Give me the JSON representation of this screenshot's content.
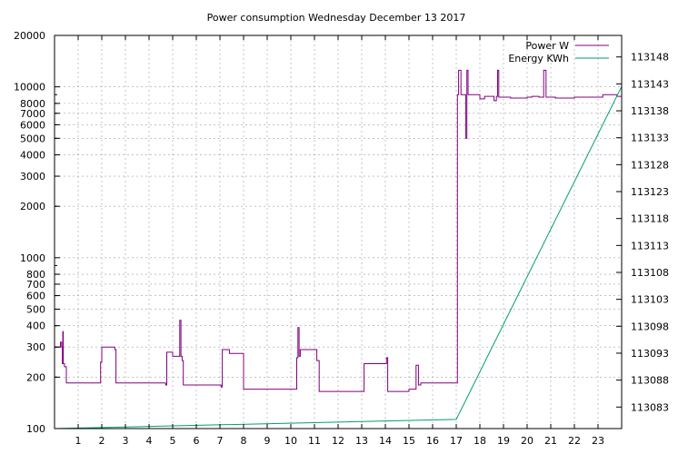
{
  "chart_data": {
    "type": "line",
    "title": "Power consumption Wednesday December 13 2017",
    "xlabel": "",
    "ylabel": "",
    "x_ticks": [
      1,
      2,
      3,
      4,
      5,
      6,
      7,
      8,
      9,
      10,
      11,
      12,
      13,
      14,
      15,
      16,
      17,
      18,
      19,
      20,
      21,
      22,
      23
    ],
    "xlim": [
      0,
      24
    ],
    "y_left": {
      "scale": "log",
      "range": [
        100,
        20000
      ],
      "ticks": [
        100,
        200,
        300,
        400,
        500,
        600,
        700,
        800,
        1000,
        2000,
        3000,
        4000,
        5000,
        6000,
        7000,
        8000,
        10000,
        20000
      ]
    },
    "y_right": {
      "range": [
        113079,
        113152
      ],
      "ticks": [
        113083,
        113088,
        113093,
        113098,
        113103,
        113108,
        113113,
        113118,
        113123,
        113128,
        113133,
        113138,
        113143,
        113148
      ]
    },
    "grid": true,
    "legend_position": "top-right",
    "series": [
      {
        "name": "Power W",
        "axis": "left",
        "color": "#800080",
        "x": [
          0.0,
          0.2,
          0.25,
          0.3,
          0.33,
          0.35,
          0.37,
          0.4,
          0.42,
          0.45,
          0.5,
          0.55,
          0.6,
          1.0,
          1.5,
          1.9,
          1.95,
          2.0,
          2.3,
          2.4,
          2.5,
          2.55,
          2.6,
          3.0,
          3.5,
          4.0,
          4.5,
          4.7,
          4.75,
          4.8,
          5.0,
          5.1,
          5.2,
          5.3,
          5.35,
          5.38,
          5.4,
          5.45,
          5.5,
          5.7,
          6.0,
          6.5,
          6.9,
          7.0,
          7.05,
          7.1,
          7.2,
          7.3,
          7.4,
          7.5,
          7.9,
          8.0,
          8.5,
          9.0,
          9.5,
          10.0,
          10.2,
          10.25,
          10.3,
          10.35,
          10.4,
          10.5,
          10.6,
          10.8,
          11.0,
          11.1,
          11.2,
          11.5,
          12.0,
          12.5,
          13.0,
          13.1,
          13.2,
          13.5,
          14.0,
          14.05,
          14.1,
          14.2,
          14.5,
          14.9,
          15.0,
          15.2,
          15.3,
          15.35,
          15.4,
          15.5,
          16.0,
          16.5,
          17.0,
          17.05,
          17.1,
          17.2,
          17.3,
          17.35,
          17.4,
          17.45,
          17.5,
          17.8,
          18.0,
          18.2,
          18.5,
          18.6,
          18.7,
          18.75,
          18.8,
          19.0,
          19.3,
          19.5,
          20.0,
          20.2,
          20.5,
          20.6,
          20.7,
          20.8,
          21.0,
          21.2,
          21.5,
          22.0,
          22.5,
          23.0,
          23.2,
          23.5,
          23.8,
          24.0
        ],
        "y": [
          300,
          300,
          320,
          300,
          240,
          370,
          240,
          240,
          230,
          230,
          185,
          185,
          185,
          185,
          185,
          185,
          245,
          300,
          300,
          300,
          300,
          290,
          185,
          185,
          185,
          185,
          185,
          180,
          280,
          280,
          265,
          265,
          265,
          430,
          265,
          265,
          250,
          180,
          180,
          180,
          180,
          180,
          180,
          180,
          175,
          290,
          290,
          290,
          275,
          275,
          275,
          170,
          170,
          170,
          170,
          170,
          170,
          260,
          390,
          265,
          290,
          290,
          290,
          290,
          290,
          250,
          165,
          165,
          165,
          165,
          165,
          240,
          240,
          240,
          240,
          260,
          165,
          165,
          165,
          165,
          170,
          170,
          235,
          235,
          180,
          185,
          185,
          185,
          185,
          9000,
          12500,
          9000,
          9000,
          9000,
          5000,
          12500,
          9000,
          9000,
          8500,
          8800,
          8800,
          8300,
          8800,
          12500,
          8700,
          8700,
          8600,
          8600,
          8700,
          8800,
          8700,
          8700,
          12500,
          8700,
          8700,
          8600,
          8600,
          8700,
          8700,
          8700,
          9000,
          9000,
          8800,
          8800
        ]
      },
      {
        "name": "Energy KWh",
        "axis": "right",
        "color": "#009e73",
        "x": [
          0.0,
          17.0,
          24.0
        ],
        "y": [
          113079.0,
          113080.7,
          113142.5
        ]
      }
    ]
  }
}
